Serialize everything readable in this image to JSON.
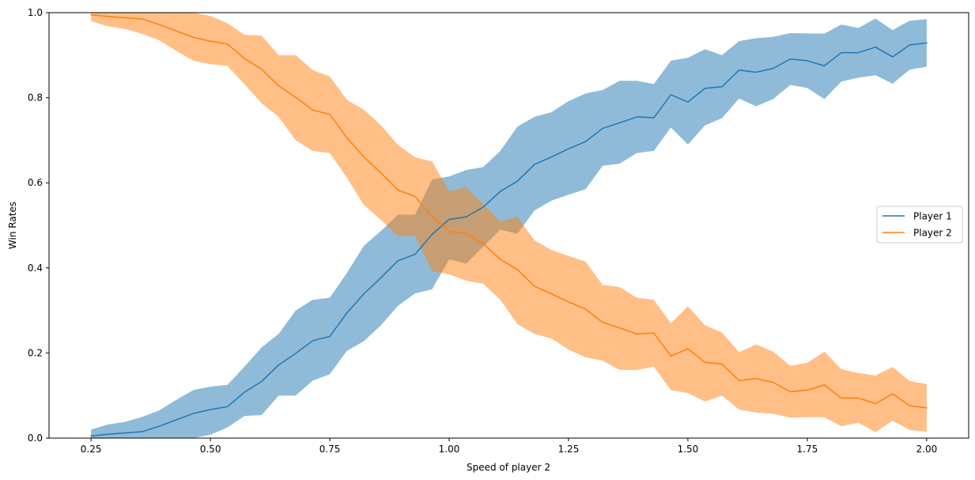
{
  "chart_data": {
    "type": "line",
    "title": "",
    "xlabel": "Speed of player 2",
    "ylabel": "Win Rates",
    "xlim": [
      0.162,
      2.088
    ],
    "ylim": [
      0.0,
      1.0
    ],
    "xticks": [
      0.25,
      0.5,
      0.75,
      1.0,
      1.25,
      1.5,
      1.75,
      2.0
    ],
    "xtick_labels": [
      "0.25",
      "0.50",
      "0.75",
      "1.00",
      "1.25",
      "1.50",
      "1.75",
      "2.00"
    ],
    "yticks": [
      0.0,
      0.2,
      0.4,
      0.6,
      0.8,
      1.0
    ],
    "ytick_labels": [
      "0.0",
      "0.2",
      "0.4",
      "0.6",
      "0.8",
      "1.0"
    ],
    "grid": false,
    "legend": {
      "position": "center-right",
      "entries": [
        "Player 1",
        "Player 2"
      ]
    },
    "x": [
      0.25,
      0.2857,
      0.3214,
      0.3571,
      0.3929,
      0.4286,
      0.4643,
      0.5,
      0.5357,
      0.5714,
      0.6071,
      0.6429,
      0.6786,
      0.7143,
      0.75,
      0.7857,
      0.8214,
      0.8571,
      0.8929,
      0.9286,
      0.9643,
      1.0,
      1.0357,
      1.0714,
      1.1071,
      1.1429,
      1.1786,
      1.2143,
      1.25,
      1.2857,
      1.3214,
      1.3571,
      1.3929,
      1.4286,
      1.4643,
      1.5,
      1.5357,
      1.5714,
      1.6071,
      1.6429,
      1.6786,
      1.7143,
      1.75,
      1.7857,
      1.8214,
      1.8571,
      1.8929,
      1.9286,
      1.9643,
      2.0
    ],
    "series": [
      {
        "name": "Player 1",
        "color": "#1f77b4",
        "fill_color": "#1f77b4",
        "fill_alpha": 0.5,
        "values": [
          0.005,
          0.009,
          0.012,
          0.015,
          0.028,
          0.043,
          0.058,
          0.067,
          0.074,
          0.108,
          0.133,
          0.172,
          0.199,
          0.229,
          0.239,
          0.294,
          0.339,
          0.377,
          0.417,
          0.432,
          0.479,
          0.514,
          0.52,
          0.543,
          0.58,
          0.604,
          0.643,
          0.661,
          0.68,
          0.697,
          0.728,
          0.741,
          0.755,
          0.753,
          0.807,
          0.79,
          0.822,
          0.826,
          0.865,
          0.86,
          0.869,
          0.891,
          0.887,
          0.875,
          0.906,
          0.906,
          0.919,
          0.896,
          0.924,
          0.929
        ],
        "lower": [
          0.0,
          0.0,
          0.0,
          0.0,
          0.0,
          0.0,
          0.0,
          0.008,
          0.025,
          0.052,
          0.054,
          0.1,
          0.1,
          0.135,
          0.15,
          0.205,
          0.228,
          0.265,
          0.311,
          0.34,
          0.35,
          0.42,
          0.41,
          0.45,
          0.49,
          0.48,
          0.535,
          0.558,
          0.572,
          0.585,
          0.64,
          0.645,
          0.67,
          0.675,
          0.73,
          0.69,
          0.735,
          0.752,
          0.798,
          0.78,
          0.797,
          0.83,
          0.823,
          0.797,
          0.838,
          0.847,
          0.853,
          0.833,
          0.866,
          0.873
        ],
        "upper": [
          0.02,
          0.032,
          0.038,
          0.05,
          0.065,
          0.09,
          0.113,
          0.121,
          0.125,
          0.168,
          0.213,
          0.245,
          0.3,
          0.325,
          0.33,
          0.388,
          0.452,
          0.487,
          0.525,
          0.525,
          0.608,
          0.615,
          0.63,
          0.637,
          0.675,
          0.732,
          0.755,
          0.766,
          0.792,
          0.81,
          0.818,
          0.84,
          0.84,
          0.832,
          0.887,
          0.894,
          0.914,
          0.9,
          0.933,
          0.94,
          0.943,
          0.952,
          0.951,
          0.951,
          0.972,
          0.964,
          0.986,
          0.959,
          0.981,
          0.985
        ]
      },
      {
        "name": "Player 2",
        "color": "#ff7f0e",
        "fill_color": "#ff7f0e",
        "fill_alpha": 0.5,
        "values": [
          0.995,
          0.991,
          0.988,
          0.985,
          0.972,
          0.957,
          0.942,
          0.933,
          0.926,
          0.892,
          0.867,
          0.828,
          0.801,
          0.771,
          0.761,
          0.706,
          0.661,
          0.623,
          0.583,
          0.568,
          0.521,
          0.486,
          0.48,
          0.457,
          0.42,
          0.396,
          0.357,
          0.339,
          0.32,
          0.303,
          0.272,
          0.259,
          0.245,
          0.247,
          0.193,
          0.21,
          0.178,
          0.174,
          0.135,
          0.14,
          0.131,
          0.109,
          0.113,
          0.125,
          0.094,
          0.094,
          0.081,
          0.104,
          0.076,
          0.071
        ],
        "lower": [
          0.98,
          0.968,
          0.962,
          0.95,
          0.935,
          0.91,
          0.887,
          0.879,
          0.875,
          0.832,
          0.787,
          0.755,
          0.7,
          0.675,
          0.67,
          0.612,
          0.548,
          0.513,
          0.475,
          0.475,
          0.392,
          0.385,
          0.37,
          0.363,
          0.325,
          0.268,
          0.245,
          0.234,
          0.208,
          0.19,
          0.182,
          0.16,
          0.16,
          0.168,
          0.113,
          0.106,
          0.086,
          0.1,
          0.067,
          0.06,
          0.057,
          0.048,
          0.049,
          0.049,
          0.028,
          0.036,
          0.014,
          0.041,
          0.019,
          0.015
        ],
        "upper": [
          1.0,
          1.0,
          1.0,
          1.0,
          1.0,
          1.0,
          1.0,
          0.992,
          0.975,
          0.948,
          0.946,
          0.9,
          0.9,
          0.865,
          0.85,
          0.795,
          0.772,
          0.735,
          0.689,
          0.66,
          0.65,
          0.58,
          0.59,
          0.55,
          0.51,
          0.52,
          0.465,
          0.442,
          0.428,
          0.415,
          0.36,
          0.355,
          0.33,
          0.325,
          0.27,
          0.31,
          0.265,
          0.248,
          0.202,
          0.22,
          0.203,
          0.17,
          0.177,
          0.203,
          0.162,
          0.153,
          0.147,
          0.167,
          0.134,
          0.127
        ]
      }
    ]
  }
}
